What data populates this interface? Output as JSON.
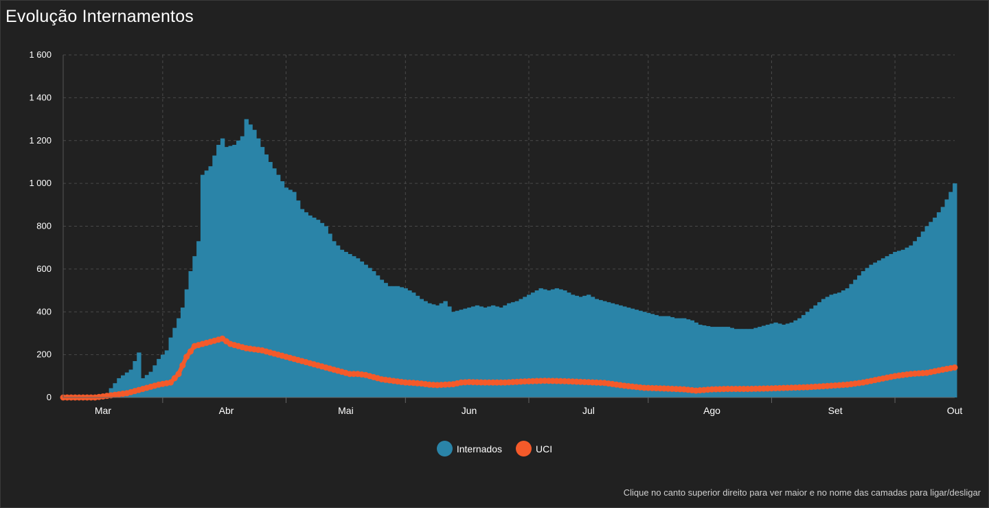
{
  "title": "Evolução Internamentos",
  "footnote": "Clique no canto superior direito para ver maior e no nome das camadas para ligar/desligar",
  "colors": {
    "internados": "#2a84a8",
    "uci": "#f45a2a",
    "grid": "#4a4a4a",
    "background": "#212121"
  },
  "legend": [
    {
      "label": "Internados",
      "color": "#2a84a8"
    },
    {
      "label": "UCI",
      "color": "#f45a2a"
    }
  ],
  "chart_data": {
    "type": "bar",
    "x_range": [
      "2020-02-20",
      "2020-10-01"
    ],
    "ylim": [
      0,
      1600
    ],
    "y_ticks": [
      0,
      200,
      400,
      600,
      800,
      1000,
      1200,
      1400,
      1600
    ],
    "y_tick_labels": [
      "0",
      "200",
      "400",
      "600",
      "800",
      "1 000",
      "1 200",
      "1 400",
      "1 600"
    ],
    "x_tick_labels": [
      {
        "date": "2020-03-01",
        "label": "Mar"
      },
      {
        "date": "2020-04-01",
        "label": "Abr"
      },
      {
        "date": "2020-05-01",
        "label": "Mai"
      },
      {
        "date": "2020-06-01",
        "label": "Jun"
      },
      {
        "date": "2020-07-01",
        "label": "Jul"
      },
      {
        "date": "2020-08-01",
        "label": "Ago"
      },
      {
        "date": "2020-09-01",
        "label": "Set"
      },
      {
        "date": "2020-10-01",
        "label": "Out"
      }
    ],
    "grid": true,
    "legend_position": "bottom",
    "series": [
      {
        "name": "Internados",
        "type": "bar",
        "points": [
          [
            "2020-02-20",
            0
          ],
          [
            "2020-02-28",
            0
          ],
          [
            "2020-03-02",
            20
          ],
          [
            "2020-03-05",
            90
          ],
          [
            "2020-03-08",
            130
          ],
          [
            "2020-03-10",
            210
          ],
          [
            "2020-03-11",
            90
          ],
          [
            "2020-03-13",
            120
          ],
          [
            "2020-03-15",
            180
          ],
          [
            "2020-03-17",
            220
          ],
          [
            "2020-03-18",
            280
          ],
          [
            "2020-03-20",
            370
          ],
          [
            "2020-03-21",
            420
          ],
          [
            "2020-03-23",
            590
          ],
          [
            "2020-03-25",
            730
          ],
          [
            "2020-03-26",
            1040
          ],
          [
            "2020-03-28",
            1080
          ],
          [
            "2020-03-30",
            1180
          ],
          [
            "2020-03-31",
            1210
          ],
          [
            "2020-04-01",
            1170
          ],
          [
            "2020-04-03",
            1180
          ],
          [
            "2020-04-05",
            1220
          ],
          [
            "2020-04-06",
            1300
          ],
          [
            "2020-04-08",
            1250
          ],
          [
            "2020-04-10",
            1170
          ],
          [
            "2020-04-12",
            1100
          ],
          [
            "2020-04-14",
            1040
          ],
          [
            "2020-04-16",
            980
          ],
          [
            "2020-04-18",
            960
          ],
          [
            "2020-04-20",
            880
          ],
          [
            "2020-04-22",
            850
          ],
          [
            "2020-04-24",
            830
          ],
          [
            "2020-04-26",
            800
          ],
          [
            "2020-04-28",
            730
          ],
          [
            "2020-04-30",
            690
          ],
          [
            "2020-05-02",
            670
          ],
          [
            "2020-05-04",
            650
          ],
          [
            "2020-05-06",
            620
          ],
          [
            "2020-05-08",
            590
          ],
          [
            "2020-05-10",
            550
          ],
          [
            "2020-05-12",
            520
          ],
          [
            "2020-05-14",
            520
          ],
          [
            "2020-05-16",
            510
          ],
          [
            "2020-05-18",
            490
          ],
          [
            "2020-05-20",
            460
          ],
          [
            "2020-05-22",
            440
          ],
          [
            "2020-05-24",
            430
          ],
          [
            "2020-05-26",
            450
          ],
          [
            "2020-05-28",
            400
          ],
          [
            "2020-05-30",
            410
          ],
          [
            "2020-06-01",
            420
          ],
          [
            "2020-06-03",
            430
          ],
          [
            "2020-06-05",
            420
          ],
          [
            "2020-06-07",
            430
          ],
          [
            "2020-06-09",
            420
          ],
          [
            "2020-06-11",
            440
          ],
          [
            "2020-06-13",
            450
          ],
          [
            "2020-06-15",
            470
          ],
          [
            "2020-06-17",
            490
          ],
          [
            "2020-06-19",
            510
          ],
          [
            "2020-06-21",
            500
          ],
          [
            "2020-06-23",
            510
          ],
          [
            "2020-06-25",
            500
          ],
          [
            "2020-06-27",
            480
          ],
          [
            "2020-06-29",
            470
          ],
          [
            "2020-07-01",
            480
          ],
          [
            "2020-07-03",
            460
          ],
          [
            "2020-07-05",
            450
          ],
          [
            "2020-07-07",
            440
          ],
          [
            "2020-07-09",
            430
          ],
          [
            "2020-07-11",
            420
          ],
          [
            "2020-07-13",
            410
          ],
          [
            "2020-07-15",
            400
          ],
          [
            "2020-07-17",
            390
          ],
          [
            "2020-07-19",
            380
          ],
          [
            "2020-07-21",
            380
          ],
          [
            "2020-07-23",
            370
          ],
          [
            "2020-07-25",
            370
          ],
          [
            "2020-07-27",
            360
          ],
          [
            "2020-07-29",
            340
          ],
          [
            "2020-08-01",
            330
          ],
          [
            "2020-08-03",
            330
          ],
          [
            "2020-08-05",
            330
          ],
          [
            "2020-08-07",
            320
          ],
          [
            "2020-08-09",
            320
          ],
          [
            "2020-08-11",
            320
          ],
          [
            "2020-08-13",
            330
          ],
          [
            "2020-08-15",
            340
          ],
          [
            "2020-08-17",
            350
          ],
          [
            "2020-08-19",
            340
          ],
          [
            "2020-08-21",
            350
          ],
          [
            "2020-08-23",
            370
          ],
          [
            "2020-08-25",
            400
          ],
          [
            "2020-08-27",
            430
          ],
          [
            "2020-08-29",
            460
          ],
          [
            "2020-08-31",
            480
          ],
          [
            "2020-09-02",
            490
          ],
          [
            "2020-09-04",
            510
          ],
          [
            "2020-09-06",
            550
          ],
          [
            "2020-09-08",
            590
          ],
          [
            "2020-09-10",
            620
          ],
          [
            "2020-09-12",
            640
          ],
          [
            "2020-09-14",
            660
          ],
          [
            "2020-09-16",
            680
          ],
          [
            "2020-09-18",
            690
          ],
          [
            "2020-09-20",
            710
          ],
          [
            "2020-09-22",
            750
          ],
          [
            "2020-09-24",
            800
          ],
          [
            "2020-09-26",
            840
          ],
          [
            "2020-09-28",
            890
          ],
          [
            "2020-09-30",
            960
          ],
          [
            "2020-10-01",
            1000
          ]
        ]
      },
      {
        "name": "UCI",
        "type": "line",
        "points": [
          [
            "2020-02-20",
            0
          ],
          [
            "2020-02-28",
            0
          ],
          [
            "2020-03-03",
            10
          ],
          [
            "2020-03-07",
            20
          ],
          [
            "2020-03-11",
            40
          ],
          [
            "2020-03-15",
            60
          ],
          [
            "2020-03-18",
            70
          ],
          [
            "2020-03-20",
            110
          ],
          [
            "2020-03-22",
            190
          ],
          [
            "2020-03-24",
            240
          ],
          [
            "2020-03-26",
            250
          ],
          [
            "2020-03-28",
            260
          ],
          [
            "2020-03-30",
            270
          ],
          [
            "2020-03-31",
            275
          ],
          [
            "2020-04-02",
            250
          ],
          [
            "2020-04-04",
            240
          ],
          [
            "2020-04-06",
            230
          ],
          [
            "2020-04-08",
            225
          ],
          [
            "2020-04-10",
            220
          ],
          [
            "2020-04-12",
            210
          ],
          [
            "2020-04-14",
            200
          ],
          [
            "2020-04-16",
            190
          ],
          [
            "2020-04-18",
            180
          ],
          [
            "2020-04-20",
            170
          ],
          [
            "2020-04-22",
            160
          ],
          [
            "2020-04-24",
            150
          ],
          [
            "2020-04-26",
            140
          ],
          [
            "2020-04-28",
            130
          ],
          [
            "2020-04-30",
            120
          ],
          [
            "2020-05-02",
            110
          ],
          [
            "2020-05-04",
            110
          ],
          [
            "2020-05-06",
            105
          ],
          [
            "2020-05-08",
            95
          ],
          [
            "2020-05-10",
            85
          ],
          [
            "2020-05-12",
            80
          ],
          [
            "2020-05-14",
            75
          ],
          [
            "2020-05-16",
            70
          ],
          [
            "2020-05-18",
            68
          ],
          [
            "2020-05-20",
            65
          ],
          [
            "2020-05-22",
            60
          ],
          [
            "2020-05-24",
            58
          ],
          [
            "2020-05-26",
            60
          ],
          [
            "2020-05-28",
            62
          ],
          [
            "2020-05-30",
            70
          ],
          [
            "2020-06-01",
            72
          ],
          [
            "2020-06-05",
            70
          ],
          [
            "2020-06-10",
            70
          ],
          [
            "2020-06-15",
            75
          ],
          [
            "2020-06-20",
            78
          ],
          [
            "2020-06-25",
            76
          ],
          [
            "2020-06-30",
            72
          ],
          [
            "2020-07-05",
            68
          ],
          [
            "2020-07-10",
            55
          ],
          [
            "2020-07-15",
            45
          ],
          [
            "2020-07-20",
            42
          ],
          [
            "2020-07-25",
            38
          ],
          [
            "2020-07-28",
            32
          ],
          [
            "2020-08-01",
            38
          ],
          [
            "2020-08-05",
            40
          ],
          [
            "2020-08-10",
            40
          ],
          [
            "2020-08-15",
            42
          ],
          [
            "2020-08-20",
            45
          ],
          [
            "2020-08-25",
            48
          ],
          [
            "2020-08-31",
            55
          ],
          [
            "2020-09-04",
            60
          ],
          [
            "2020-09-08",
            70
          ],
          [
            "2020-09-12",
            85
          ],
          [
            "2020-09-16",
            100
          ],
          [
            "2020-09-20",
            110
          ],
          [
            "2020-09-24",
            115
          ],
          [
            "2020-09-28",
            130
          ],
          [
            "2020-10-01",
            140
          ]
        ]
      }
    ]
  }
}
